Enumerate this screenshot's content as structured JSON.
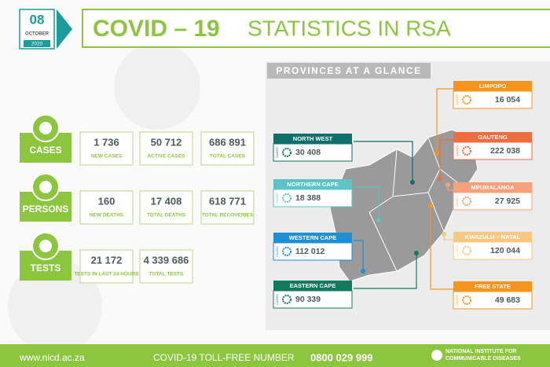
{
  "date": {
    "day": "08",
    "month": "OCTOBER",
    "year": "2020"
  },
  "title": {
    "bold": "COVID – 19",
    "rest": "STATISTICS IN RSA"
  },
  "map_title": "PROVINCES AT A GLANCE",
  "stat_groups": [
    {
      "label": "CASES",
      "stats": [
        {
          "value": "1 736",
          "label": "NEW CASES"
        },
        {
          "value": "50 712",
          "label": "ACTIVE CASES"
        },
        {
          "value": "686 891",
          "label": "TOTAL CASES"
        }
      ]
    },
    {
      "label": "PERSONS",
      "stats": [
        {
          "value": "160",
          "label": "NEW DEATHS"
        },
        {
          "value": "17 408",
          "label": "TOTAL DEATHS"
        },
        {
          "value": "618 771",
          "label": "TOTAL RECOVERIES"
        }
      ]
    },
    {
      "label": "TESTS",
      "stats": [
        {
          "value": "21 172",
          "label": "TESTS IN LAST 24 HOURS"
        },
        {
          "value": "4 339 686",
          "label": "TOTAL TESTS"
        }
      ]
    }
  ],
  "province_unit": "CASES",
  "provinces": [
    {
      "name": "NORTH WEST",
      "value": "30 408"
    },
    {
      "name": "NORTHERN CAPE",
      "value": "18 388"
    },
    {
      "name": "WESTERN CAPE",
      "value": "112 012"
    },
    {
      "name": "EASTERN CAPE",
      "value": "90 339"
    },
    {
      "name": "LIMPOPO",
      "value": "16 054"
    },
    {
      "name": "GAUTENG",
      "value": "222 038"
    },
    {
      "name": "MPUMALANGA",
      "value": "27 925"
    },
    {
      "name": "KWAZULU – NATAL",
      "value": "120 044"
    },
    {
      "name": "FREE STATE",
      "value": "49 683"
    }
  ],
  "footer": {
    "url": "www.nicd.ac.za",
    "tollfree": "COVID-19 TOLL-FREE NUMBER",
    "number": "0800 029 999",
    "institute": [
      "NATIONAL INSTITUTE FOR",
      "COMMUNICABLE DISEASES"
    ]
  }
}
